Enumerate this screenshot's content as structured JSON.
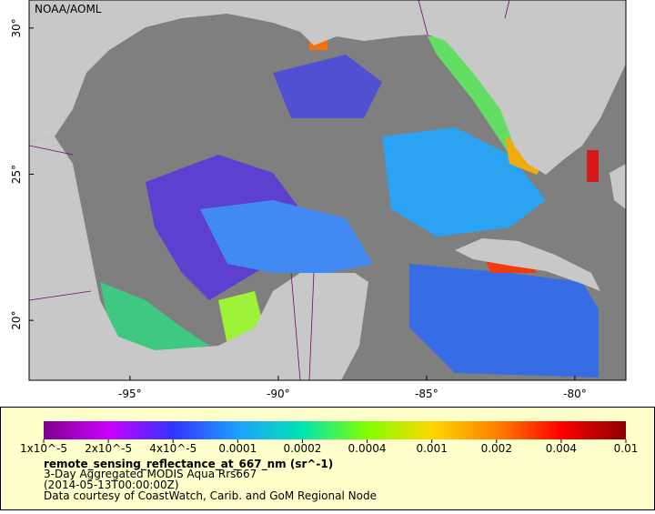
{
  "map": {
    "watermark": "NOAA/AOML",
    "xlim": [
      -98.4,
      -78.28
    ],
    "ylim": [
      17.95,
      30.96
    ],
    "xticks": [
      {
        "value": -95,
        "label": "-95°"
      },
      {
        "value": -90,
        "label": "-90°"
      },
      {
        "value": -85,
        "label": "-85°"
      },
      {
        "value": -80,
        "label": "-80°"
      }
    ],
    "yticks": [
      {
        "value": 30,
        "label": "30°"
      },
      {
        "value": 25,
        "label": "25°"
      },
      {
        "value": 20,
        "label": "20°"
      }
    ]
  },
  "colorbar": {
    "ticks": [
      {
        "value": 1e-05,
        "label": "1x10^-5"
      },
      {
        "value": 2e-05,
        "label": "2x10^-5"
      },
      {
        "value": 4e-05,
        "label": "4x10^-5"
      },
      {
        "value": 0.0001,
        "label": "0.0001"
      },
      {
        "value": 0.0002,
        "label": "0.0002"
      },
      {
        "value": 0.0004,
        "label": "0.0004"
      },
      {
        "value": 0.001,
        "label": "0.001"
      },
      {
        "value": 0.002,
        "label": "0.002"
      },
      {
        "value": 0.004,
        "label": "0.004"
      },
      {
        "value": 0.01,
        "label": "0.01"
      }
    ],
    "colors": [
      "#80008c",
      "#cc00ff",
      "#3333ff",
      "#1fa0ff",
      "#00e6b0",
      "#80ff00",
      "#ffd700",
      "#ff8000",
      "#ff0000",
      "#8b0000"
    ],
    "variable": "remote_sensing_reflectance_at_667_nm (sr^-1)",
    "lines": [
      "3-Day Aggregated MODIS Aqua Rrs667",
      "(2014-05-13T00:00:00Z)",
      "Data courtesy of CoastWatch, Carib. and GoM Regional Node"
    ]
  }
}
